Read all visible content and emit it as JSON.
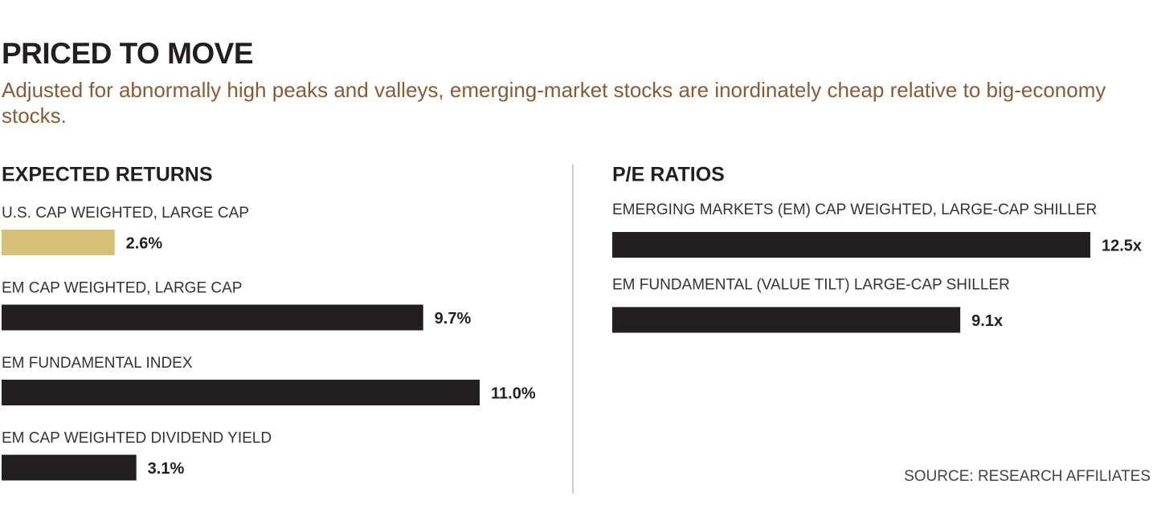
{
  "title": "PRICED TO MOVE",
  "subtitle": "Adjusted for abnormally high peaks and valleys, emerging-market stocks are inordinately cheap relative to big-economy stocks.",
  "source": "SOURCE: RESEARCH AFFILIATES",
  "chart_data": [
    {
      "type": "bar",
      "orientation": "horizontal",
      "title": "EXPECTED RETURNS",
      "categories": [
        "U.S. CAP WEIGHTED, LARGE CAP",
        "EM CAP WEIGHTED, LARGE CAP",
        "EM FUNDAMENTAL INDEX",
        "EM CAP WEIGHTED DIVIDEND YIELD"
      ],
      "values": [
        2.6,
        9.7,
        11.0,
        3.1
      ],
      "value_labels": [
        "2.6%",
        "9.7%",
        "11.0%",
        "3.1%"
      ],
      "colors": [
        "#d6bf77",
        "#231f20",
        "#231f20",
        "#231f20"
      ]
    },
    {
      "type": "bar",
      "orientation": "horizontal",
      "title": "P/E RATIOS",
      "categories": [
        "EMERGING MARKETS (EM) CAP WEIGHTED, LARGE-CAP SHILLER",
        "EM FUNDAMENTAL (VALUE TILT) LARGE-CAP SHILLER"
      ],
      "values": [
        12.5,
        9.1
      ],
      "value_labels": [
        "12.5x",
        "9.1x"
      ],
      "colors": [
        "#231f20",
        "#231f20"
      ]
    }
  ]
}
